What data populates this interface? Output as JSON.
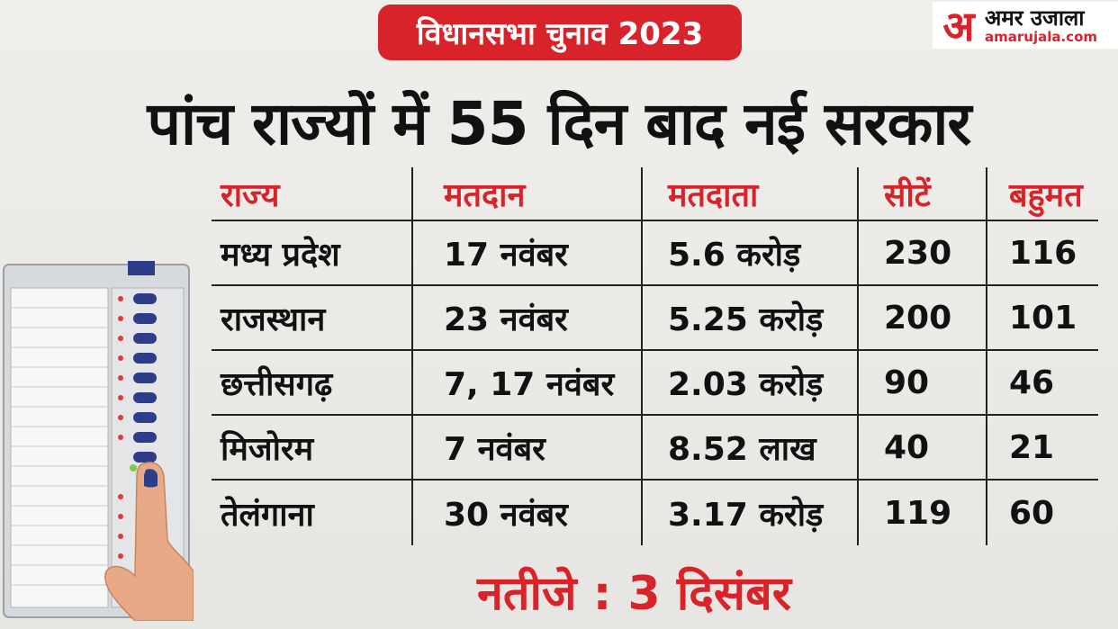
{
  "badge": "विधानसभा चुनाव 2023",
  "logo": {
    "name": "अमर उजाला",
    "url": "amarujala.com",
    "mark": "अ"
  },
  "headline": "पांच राज्यों में 55 दिन बाद नई सरकार",
  "table": {
    "headers": [
      "राज्य",
      "मतदान",
      "मतदाता",
      "सीटें",
      "बहुमत"
    ],
    "rows": [
      [
        "मध्य प्रदेश",
        "17 नवंबर",
        "5.6 करोड़",
        "230",
        "116"
      ],
      [
        "राजस्थान",
        "23 नवंबर",
        "5.25 करोड़",
        "200",
        "101"
      ],
      [
        "छत्तीसगढ़",
        "7, 17 नवंबर",
        "2.03 करोड़",
        "90",
        "46"
      ],
      [
        "मिजोरम",
        "7 नवंबर",
        "8.52 लाख",
        "40",
        "21"
      ],
      [
        "तेलंगाना",
        "30 नवंबर",
        "3.17 करोड़",
        "119",
        "60"
      ]
    ]
  },
  "result": "नतीजे : 3 दिसंबर",
  "colors": {
    "accent": "#d8232a",
    "text": "#111111",
    "background": "#eceae6"
  },
  "illustration": "evm-machine-with-finger-icon"
}
